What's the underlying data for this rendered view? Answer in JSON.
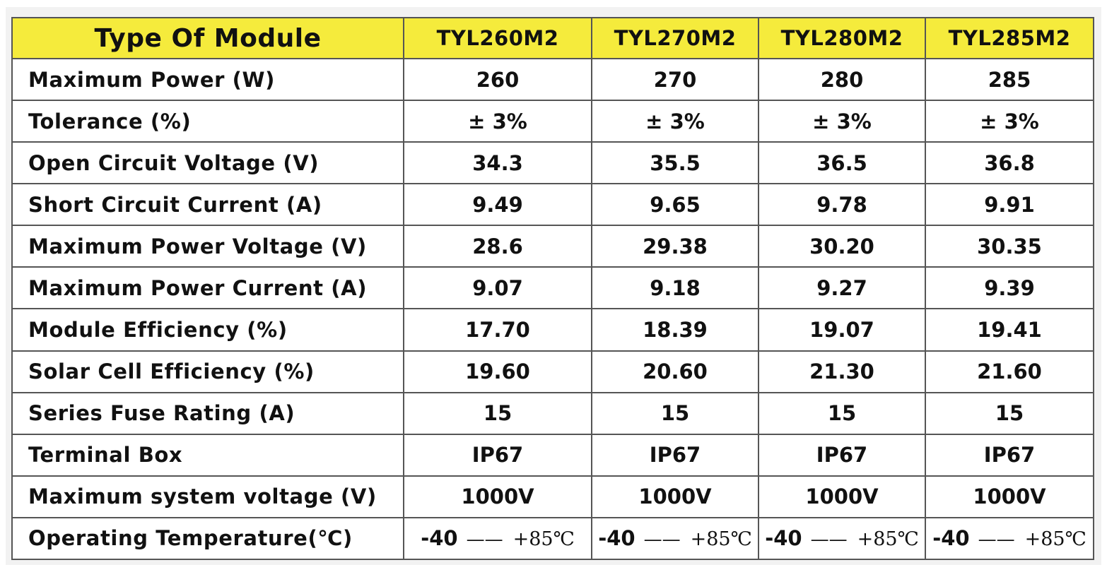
{
  "header": {
    "label": "Type Of Module",
    "models": [
      "TYL260M2",
      "TYL270M2",
      "TYL280M2",
      "TYL285M2"
    ]
  },
  "rows": [
    {
      "label": "Maximum Power (W)",
      "values": [
        "260",
        "270",
        "280",
        "285"
      ]
    },
    {
      "label": "Tolerance (%)",
      "values": [
        "± 3%",
        "± 3%",
        "± 3%",
        "± 3%"
      ]
    },
    {
      "label": "Open Circuit Voltage (V)",
      "values": [
        "34.3",
        "35.5",
        "36.5",
        "36.8"
      ]
    },
    {
      "label": "Short Circuit Current (A)",
      "values": [
        "9.49",
        "9.65",
        "9.78",
        "9.91"
      ]
    },
    {
      "label": "Maximum Power Voltage (V)",
      "values": [
        "28.6",
        "29.38",
        "30.20",
        "30.35"
      ]
    },
    {
      "label": "Maximum Power Current (A)",
      "values": [
        "9.07",
        "9.18",
        "9.27",
        "9.39"
      ]
    },
    {
      "label": "Module Efficiency (%)",
      "values": [
        "17.70",
        "18.39",
        "19.07",
        "19.41"
      ]
    },
    {
      "label": "Solar Cell Efficiency (%)",
      "values": [
        "19.60",
        "20.60",
        "21.30",
        "21.60"
      ]
    },
    {
      "label": "Series Fuse Rating (A)",
      "values": [
        "15",
        "15",
        "15",
        "15"
      ]
    },
    {
      "label": "Terminal Box",
      "values": [
        "IP67",
        "IP67",
        "IP67",
        "IP67"
      ]
    },
    {
      "label": "Maximum system voltage (V)",
      "values": [
        "1000V",
        "1000V",
        "1000V",
        "1000V"
      ]
    }
  ],
  "temperature": {
    "label": "Operating Temperature(℃)",
    "min": "-40",
    "dash": "——",
    "max": "+85℃"
  },
  "colors": {
    "header_bg": "#f5eb3c",
    "border": "#555555",
    "text": "#111111"
  }
}
